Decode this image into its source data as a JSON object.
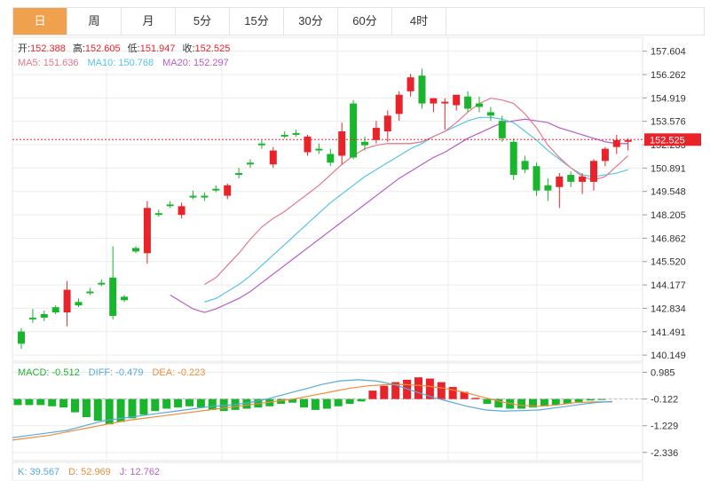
{
  "tabs": [
    {
      "label": "日",
      "active": true
    },
    {
      "label": "周"
    },
    {
      "label": "月"
    },
    {
      "label": "5分"
    },
    {
      "label": "15分"
    },
    {
      "label": "30分"
    },
    {
      "label": "60分"
    },
    {
      "label": "4时"
    }
  ],
  "ohlc_info": {
    "open_label": "开:",
    "open": "152.388",
    "high_label": "高:",
    "high": "152.605",
    "low_label": "低:",
    "low": "151.947",
    "close_label": "收:",
    "close": "152.525"
  },
  "ma_info": {
    "ma5": "MA5: 151.636",
    "ma10": "MA10: 150.768",
    "ma20": "MA20: 152.297"
  },
  "macd_info": {
    "macd": "MACD: -0.512",
    "diff": "DIFF: -0.479",
    "dea": "DEA: -0.223"
  },
  "kdj_info": {
    "k": "K: 39.567",
    "d": "D: 52.969",
    "j": "J: 12.762"
  },
  "colors": {
    "up": "#e8242a",
    "down": "#19b62d",
    "ma5": "#e8768b",
    "ma10": "#57c4e6",
    "ma20": "#b85cc7",
    "diff": "#57a9df",
    "dea": "#f08c3a",
    "grid": "#ececec",
    "price_tag": "#e8242a",
    "tab_active": "#f0a14e"
  },
  "chart_data": {
    "type": "candlestick",
    "price_axis": {
      "ticks": [
        "157.604",
        "156.262",
        "154.919",
        "153.576",
        "152.233",
        "150.891",
        "149.548",
        "148.205",
        "146.862",
        "145.520",
        "144.177",
        "142.834",
        "141.491",
        "140.149"
      ],
      "ylim": [
        139.9,
        158.3
      ],
      "current_price": "152.525"
    },
    "candles": [
      {
        "o": 141.5,
        "h": 141.7,
        "l": 140.5,
        "c": 140.8
      },
      {
        "o": 142.3,
        "h": 142.8,
        "l": 142.0,
        "c": 142.2
      },
      {
        "o": 142.5,
        "h": 142.7,
        "l": 142.1,
        "c": 142.3
      },
      {
        "o": 142.9,
        "h": 143.0,
        "l": 142.5,
        "c": 142.6
      },
      {
        "o": 142.6,
        "h": 144.4,
        "l": 141.8,
        "c": 143.9
      },
      {
        "o": 143.2,
        "h": 143.4,
        "l": 142.9,
        "c": 143.0
      },
      {
        "o": 143.8,
        "h": 144.0,
        "l": 143.6,
        "c": 143.7
      },
      {
        "o": 144.3,
        "h": 144.5,
        "l": 144.1,
        "c": 144.2
      },
      {
        "o": 144.6,
        "h": 146.4,
        "l": 142.2,
        "c": 142.4
      },
      {
        "o": 143.5,
        "h": 143.6,
        "l": 143.2,
        "c": 143.3
      },
      {
        "o": 146.3,
        "h": 146.4,
        "l": 146.0,
        "c": 146.1
      },
      {
        "o": 146.0,
        "h": 149.0,
        "l": 145.4,
        "c": 148.6
      },
      {
        "o": 148.3,
        "h": 148.5,
        "l": 148.1,
        "c": 148.2
      },
      {
        "o": 148.8,
        "h": 149.0,
        "l": 148.6,
        "c": 148.7
      },
      {
        "o": 148.2,
        "h": 148.9,
        "l": 148.0,
        "c": 148.7
      },
      {
        "o": 149.3,
        "h": 149.6,
        "l": 149.1,
        "c": 149.2
      },
      {
        "o": 149.3,
        "h": 149.5,
        "l": 149.0,
        "c": 149.2
      },
      {
        "o": 149.7,
        "h": 149.9,
        "l": 149.5,
        "c": 149.6
      },
      {
        "o": 149.3,
        "h": 150.0,
        "l": 149.1,
        "c": 149.9
      },
      {
        "o": 150.6,
        "h": 150.9,
        "l": 150.3,
        "c": 150.5
      },
      {
        "o": 151.2,
        "h": 151.4,
        "l": 150.9,
        "c": 151.1
      },
      {
        "o": 152.3,
        "h": 152.5,
        "l": 152.0,
        "c": 152.2
      },
      {
        "o": 151.1,
        "h": 152.1,
        "l": 150.9,
        "c": 151.9
      },
      {
        "o": 152.8,
        "h": 153.0,
        "l": 152.6,
        "c": 152.7
      },
      {
        "o": 152.9,
        "h": 153.1,
        "l": 152.7,
        "c": 152.8
      },
      {
        "o": 151.8,
        "h": 152.8,
        "l": 151.6,
        "c": 152.7
      },
      {
        "o": 152.0,
        "h": 152.3,
        "l": 151.7,
        "c": 151.9
      },
      {
        "o": 151.7,
        "h": 152.0,
        "l": 151.0,
        "c": 151.2
      },
      {
        "o": 151.6,
        "h": 153.5,
        "l": 151.1,
        "c": 153.0
      },
      {
        "o": 154.6,
        "h": 154.8,
        "l": 151.4,
        "c": 151.5
      },
      {
        "o": 152.4,
        "h": 152.7,
        "l": 151.9,
        "c": 152.2
      },
      {
        "o": 152.5,
        "h": 153.6,
        "l": 152.3,
        "c": 153.2
      },
      {
        "o": 153.0,
        "h": 154.2,
        "l": 152.4,
        "c": 153.9
      },
      {
        "o": 154.0,
        "h": 155.3,
        "l": 153.6,
        "c": 155.1
      },
      {
        "o": 155.3,
        "h": 156.3,
        "l": 155.0,
        "c": 156.1
      },
      {
        "o": 156.2,
        "h": 156.6,
        "l": 154.3,
        "c": 154.6
      },
      {
        "o": 154.6,
        "h": 154.9,
        "l": 154.1,
        "c": 154.9
      },
      {
        "o": 154.6,
        "h": 154.9,
        "l": 153.1,
        "c": 154.7
      },
      {
        "o": 154.5,
        "h": 155.0,
        "l": 154.2,
        "c": 155.1
      },
      {
        "o": 155.0,
        "h": 155.3,
        "l": 154.1,
        "c": 154.3
      },
      {
        "o": 154.6,
        "h": 155.0,
        "l": 154.1,
        "c": 154.4
      },
      {
        "o": 154.1,
        "h": 154.4,
        "l": 153.6,
        "c": 153.9
      },
      {
        "o": 153.6,
        "h": 153.9,
        "l": 152.4,
        "c": 152.6
      },
      {
        "o": 152.4,
        "h": 152.6,
        "l": 150.2,
        "c": 150.5
      },
      {
        "o": 151.3,
        "h": 151.6,
        "l": 150.6,
        "c": 150.8
      },
      {
        "o": 151.0,
        "h": 151.2,
        "l": 149.3,
        "c": 149.6
      },
      {
        "o": 149.9,
        "h": 150.3,
        "l": 149.0,
        "c": 149.6
      },
      {
        "o": 149.8,
        "h": 150.6,
        "l": 148.6,
        "c": 150.4
      },
      {
        "o": 150.5,
        "h": 150.7,
        "l": 149.8,
        "c": 150.1
      },
      {
        "o": 150.1,
        "h": 150.6,
        "l": 149.4,
        "c": 150.4
      },
      {
        "o": 150.1,
        "h": 151.4,
        "l": 149.6,
        "c": 151.3
      },
      {
        "o": 151.3,
        "h": 152.1,
        "l": 151.0,
        "c": 152.0
      },
      {
        "o": 152.1,
        "h": 152.8,
        "l": 151.7,
        "c": 152.5
      },
      {
        "o": 152.4,
        "h": 152.6,
        "l": 151.9,
        "c": 152.5
      }
    ],
    "ma": {
      "ma5": [
        144.2,
        144.6,
        145.3,
        146.0,
        146.8,
        147.5,
        148.0,
        148.4,
        148.9,
        149.4,
        149.9,
        150.5,
        151.1,
        151.6,
        152.0,
        152.2,
        152.3,
        152.3,
        152.3,
        152.4,
        152.7,
        153.0,
        153.5,
        154.1,
        154.6,
        154.9,
        154.8,
        154.6,
        154.0,
        153.2,
        152.2,
        151.5,
        150.9,
        150.4,
        150.2,
        150.4,
        151.0,
        151.6
      ],
      "ma10": [
        143.2,
        143.4,
        143.8,
        144.2,
        144.7,
        145.3,
        145.9,
        146.5,
        147.1,
        147.7,
        148.3,
        148.9,
        149.4,
        149.9,
        150.4,
        150.8,
        151.2,
        151.6,
        152.0,
        152.3,
        152.7,
        153.0,
        153.3,
        153.6,
        153.8,
        153.8,
        153.7,
        153.5,
        153.0,
        152.5,
        151.9,
        151.4,
        150.9,
        150.5,
        150.4,
        150.5,
        150.6,
        150.8
      ],
      "ma20": [
        143.6,
        143.2,
        142.8,
        142.6,
        142.8,
        143.1,
        143.4,
        143.8,
        144.3,
        144.8,
        145.3,
        145.8,
        146.3,
        146.8,
        147.3,
        147.8,
        148.3,
        148.8,
        149.3,
        149.8,
        150.3,
        150.7,
        151.1,
        151.5,
        151.8,
        152.2,
        152.6,
        152.9,
        153.2,
        153.5,
        153.6,
        153.7,
        153.6,
        153.5,
        153.2,
        153.0,
        152.8,
        152.6,
        152.4,
        152.3,
        152.3
      ]
    },
    "macd_axis": {
      "ticks": [
        "0.985",
        "-0.122",
        "-1.229",
        "-2.336"
      ],
      "ylim": [
        -2.6,
        1.3
      ]
    },
    "macd_hist": [
      -0.25,
      -0.25,
      -0.25,
      -0.3,
      -0.35,
      -0.55,
      -0.75,
      -0.9,
      -1.05,
      -0.95,
      -0.8,
      -0.65,
      -0.5,
      -0.4,
      -0.35,
      -0.3,
      -0.35,
      -0.45,
      -0.5,
      -0.45,
      -0.4,
      -0.35,
      -0.3,
      -0.2,
      -0.15,
      -0.35,
      -0.45,
      -0.4,
      -0.3,
      -0.2,
      -0.1,
      0.35,
      0.55,
      0.7,
      0.8,
      0.9,
      0.85,
      0.7,
      0.5,
      0.3,
      0.05,
      -0.2,
      -0.35,
      -0.4,
      -0.4,
      -0.35,
      -0.3,
      -0.25,
      -0.2,
      -0.12,
      -0.06,
      -0.03
    ],
    "diff_line": [
      -1.6,
      -1.5,
      -1.4,
      -1.3,
      -1.1,
      -0.9,
      -0.8,
      -0.7,
      -0.6,
      -0.5,
      -0.4,
      -0.3,
      -0.25,
      -0.15,
      0.0,
      0.2,
      0.4,
      0.6,
      0.75,
      0.8,
      0.75,
      0.6,
      0.35,
      0.1,
      -0.1,
      -0.3,
      -0.45,
      -0.5,
      -0.48,
      -0.45,
      -0.35,
      -0.25,
      -0.15,
      -0.1
    ],
    "dea_line": [
      -1.7,
      -1.6,
      -1.5,
      -1.35,
      -1.2,
      -1.05,
      -0.9,
      -0.8,
      -0.7,
      -0.6,
      -0.5,
      -0.4,
      -0.3,
      -0.2,
      -0.1,
      0.0,
      0.15,
      0.3,
      0.45,
      0.55,
      0.6,
      0.6,
      0.55,
      0.45,
      0.3,
      0.1,
      -0.1,
      -0.25,
      -0.3,
      -0.25,
      -0.15,
      -0.12,
      -0.12
    ]
  }
}
